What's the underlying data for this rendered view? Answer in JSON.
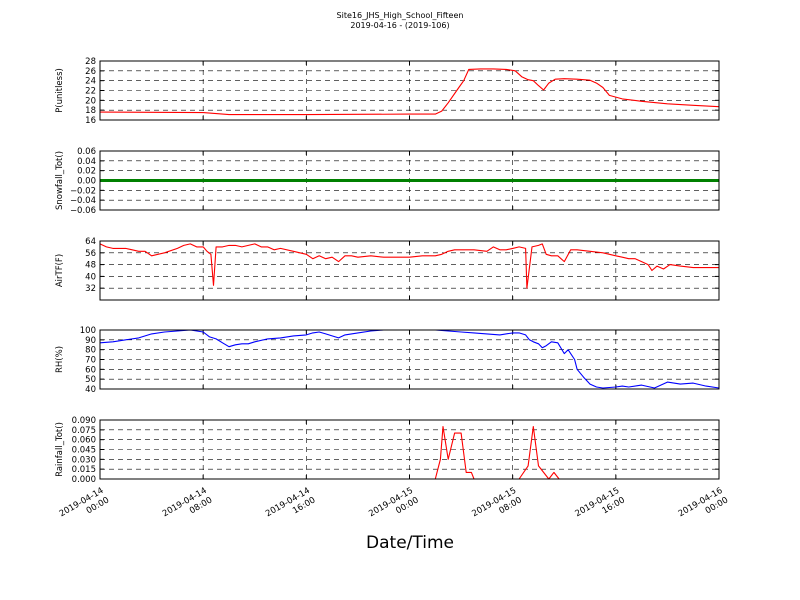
{
  "title": "Site16_JHS_High_School_Fifteen",
  "subtitle": "2019-04-16 - (2019-106)",
  "xlabel": "Date/Time",
  "chart_data": {
    "type": "line",
    "x_ticks": [
      [
        "2019-04-14",
        "00:00"
      ],
      [
        "2019-04-14",
        "08:00"
      ],
      [
        "2019-04-14",
        "16:00"
      ],
      [
        "2019-04-15",
        "00:00"
      ],
      [
        "2019-04-15",
        "08:00"
      ],
      [
        "2019-04-15",
        "16:00"
      ],
      [
        "2019-04-16",
        "00:00"
      ]
    ],
    "x_range_hours": [
      0,
      48
    ],
    "grid": true,
    "panels": [
      {
        "ylabel": "P(unitless)",
        "ylim": [
          16,
          28
        ],
        "yticks": [
          "16",
          "18",
          "20",
          "22",
          "24",
          "26",
          "28"
        ],
        "series": [
          {
            "color": "#ff0000",
            "points": [
              [
                0,
                17.6
              ],
              [
                8,
                17.5
              ],
              [
                10,
                17.1
              ],
              [
                16,
                17.1
              ],
              [
                24,
                17.2
              ],
              [
                26,
                17.2
              ],
              [
                26.5,
                17.8
              ],
              [
                27,
                19.5
              ],
              [
                27.8,
                22.5
              ],
              [
                28.2,
                24
              ],
              [
                28.6,
                26.3
              ],
              [
                29.5,
                26.4
              ],
              [
                30.5,
                26.4
              ],
              [
                31.5,
                26.3
              ],
              [
                32.2,
                26
              ],
              [
                32.7,
                24.8
              ],
              [
                33.2,
                24.2
              ],
              [
                33.6,
                24
              ],
              [
                34,
                23
              ],
              [
                34.4,
                22.1
              ],
              [
                34.8,
                23.5
              ],
              [
                35.3,
                24.3
              ],
              [
                36,
                24.4
              ],
              [
                37,
                24.3
              ],
              [
                38,
                24.1
              ],
              [
                38.5,
                23.5
              ],
              [
                39,
                22.6
              ],
              [
                39.5,
                21
              ],
              [
                40.5,
                20.3
              ],
              [
                42,
                19.8
              ],
              [
                44,
                19.3
              ],
              [
                46,
                19
              ],
              [
                48,
                18.7
              ]
            ]
          }
        ]
      },
      {
        "ylabel": "Snowfall_Tot()",
        "ylim": [
          -0.06,
          0.06
        ],
        "yticks": [
          "−0.06",
          "−0.04",
          "−0.02",
          "0.00",
          "0.02",
          "0.04",
          "0.06"
        ],
        "series": [
          {
            "color": "#008000",
            "width": 3,
            "points": [
              [
                0,
                0
              ],
              [
                48,
                0
              ]
            ]
          }
        ]
      },
      {
        "ylabel": "AirTF(F)",
        "ylim": [
          24,
          64
        ],
        "yticks": [
          "32",
          "40",
          "48",
          "56",
          "64"
        ],
        "series": [
          {
            "color": "#ff0000",
            "points": [
              [
                0,
                62
              ],
              [
                0.5,
                60
              ],
              [
                1,
                59
              ],
              [
                2,
                59
              ],
              [
                2.5,
                58
              ],
              [
                3,
                57
              ],
              [
                3.5,
                57
              ],
              [
                4,
                54
              ],
              [
                5,
                56
              ],
              [
                6,
                59
              ],
              [
                6.5,
                61
              ],
              [
                7,
                62
              ],
              [
                7.5,
                60
              ],
              [
                8,
                60
              ],
              [
                8.3,
                57
              ],
              [
                8.6,
                55
              ],
              [
                8.8,
                34
              ],
              [
                9,
                60
              ],
              [
                9.5,
                60
              ],
              [
                10,
                61
              ],
              [
                10.5,
                61
              ],
              [
                11,
                60
              ],
              [
                11.5,
                61
              ],
              [
                12,
                62
              ],
              [
                12.5,
                60
              ],
              [
                13,
                60
              ],
              [
                13.5,
                58
              ],
              [
                14,
                59
              ],
              [
                15,
                57
              ],
              [
                16,
                55
              ],
              [
                16.5,
                52
              ],
              [
                17,
                54
              ],
              [
                17.5,
                52
              ],
              [
                18,
                53
              ],
              [
                18.5,
                50
              ],
              [
                19,
                54
              ],
              [
                19.5,
                54
              ],
              [
                20,
                53
              ],
              [
                21,
                54
              ],
              [
                22,
                53
              ],
              [
                23,
                53
              ],
              [
                24,
                53
              ],
              [
                25,
                54
              ],
              [
                26,
                54
              ],
              [
                26.5,
                55
              ],
              [
                27,
                57
              ],
              [
                27.5,
                58
              ],
              [
                28,
                58
              ],
              [
                29,
                58
              ],
              [
                30,
                57
              ],
              [
                30.5,
                60
              ],
              [
                31,
                58
              ],
              [
                31.5,
                58
              ],
              [
                32,
                59
              ],
              [
                32.5,
                60
              ],
              [
                33,
                59
              ],
              [
                33.1,
                32
              ],
              [
                33.5,
                60
              ],
              [
                34,
                61
              ],
              [
                34.3,
                62
              ],
              [
                34.6,
                55
              ],
              [
                35,
                54
              ],
              [
                35.5,
                54
              ],
              [
                36,
                50
              ],
              [
                36.5,
                58
              ],
              [
                37,
                58
              ],
              [
                38,
                57
              ],
              [
                39,
                56
              ],
              [
                39.5,
                55
              ],
              [
                40,
                54
              ],
              [
                40.5,
                53
              ],
              [
                41,
                52
              ],
              [
                41.5,
                52
              ],
              [
                42,
                50
              ],
              [
                42.5,
                48
              ],
              [
                42.8,
                44
              ],
              [
                43.2,
                47
              ],
              [
                43.7,
                45
              ],
              [
                44.2,
                48
              ],
              [
                45,
                47
              ],
              [
                46,
                46
              ],
              [
                47,
                46
              ],
              [
                48,
                46
              ]
            ]
          }
        ]
      },
      {
        "ylabel": "RH(%)",
        "ylim": [
          40,
          100
        ],
        "yticks": [
          "40",
          "50",
          "60",
          "70",
          "80",
          "90",
          "100"
        ],
        "series": [
          {
            "color": "#0000ff",
            "points": [
              [
                0,
                87
              ],
              [
                1,
                88
              ],
              [
                2,
                90
              ],
              [
                3,
                92
              ],
              [
                4,
                96
              ],
              [
                5,
                98
              ],
              [
                6,
                99
              ],
              [
                7,
                100
              ],
              [
                8,
                98
              ],
              [
                8.5,
                93
              ],
              [
                9,
                91
              ],
              [
                9.5,
                87
              ],
              [
                10,
                83
              ],
              [
                10.5,
                85
              ],
              [
                11,
                86
              ],
              [
                11.5,
                86
              ],
              [
                12,
                88
              ],
              [
                13,
                91
              ],
              [
                14,
                92
              ],
              [
                15,
                94
              ],
              [
                16,
                95
              ],
              [
                16.5,
                97
              ],
              [
                17,
                98
              ],
              [
                17.5,
                96
              ],
              [
                18,
                94
              ],
              [
                18.5,
                92
              ],
              [
                19,
                95
              ],
              [
                20,
                97
              ],
              [
                21,
                99
              ],
              [
                22,
                100
              ],
              [
                26,
                100
              ],
              [
                27,
                99
              ],
              [
                28,
                98
              ],
              [
                29,
                97
              ],
              [
                30,
                96
              ],
              [
                31,
                95
              ],
              [
                32,
                97
              ],
              [
                32.5,
                97
              ],
              [
                33,
                95
              ],
              [
                33.3,
                90
              ],
              [
                33.6,
                88
              ],
              [
                34,
                86
              ],
              [
                34.3,
                82
              ],
              [
                34.6,
                84
              ],
              [
                35,
                88
              ],
              [
                35.5,
                87
              ],
              [
                36,
                76
              ],
              [
                36.3,
                80
              ],
              [
                36.8,
                70
              ],
              [
                37,
                60
              ],
              [
                37.5,
                52
              ],
              [
                38,
                45
              ],
              [
                38.5,
                42
              ],
              [
                39,
                41
              ],
              [
                40,
                42
              ],
              [
                40.5,
                43
              ],
              [
                41,
                42
              ],
              [
                42,
                44
              ],
              [
                43,
                41
              ],
              [
                44,
                47
              ],
              [
                44.5,
                46
              ],
              [
                45,
                45
              ],
              [
                46,
                46
              ],
              [
                47,
                43
              ],
              [
                48,
                41
              ]
            ]
          }
        ]
      },
      {
        "ylabel": "Rainfall_Tot()",
        "ylim": [
          0,
          0.09
        ],
        "yticks": [
          "0.000",
          "0.015",
          "0.030",
          "0.045",
          "0.060",
          "0.075",
          "0.090"
        ],
        "series": [
          {
            "color": "#ff0000",
            "points": [
              [
                0,
                0
              ],
              [
                26,
                0
              ],
              [
                26.4,
                0.03
              ],
              [
                26.6,
                0.08
              ],
              [
                27,
                0.03
              ],
              [
                27.5,
                0.07
              ],
              [
                28,
                0.07
              ],
              [
                28.4,
                0.01
              ],
              [
                28.8,
                0.01
              ],
              [
                29,
                0
              ],
              [
                32.5,
                0
              ],
              [
                33.2,
                0.02
              ],
              [
                33.6,
                0.08
              ],
              [
                34,
                0.02
              ],
              [
                34.4,
                0.01
              ],
              [
                34.8,
                0
              ],
              [
                35.2,
                0.01
              ],
              [
                35.6,
                0
              ],
              [
                48,
                0
              ]
            ]
          }
        ]
      }
    ]
  }
}
